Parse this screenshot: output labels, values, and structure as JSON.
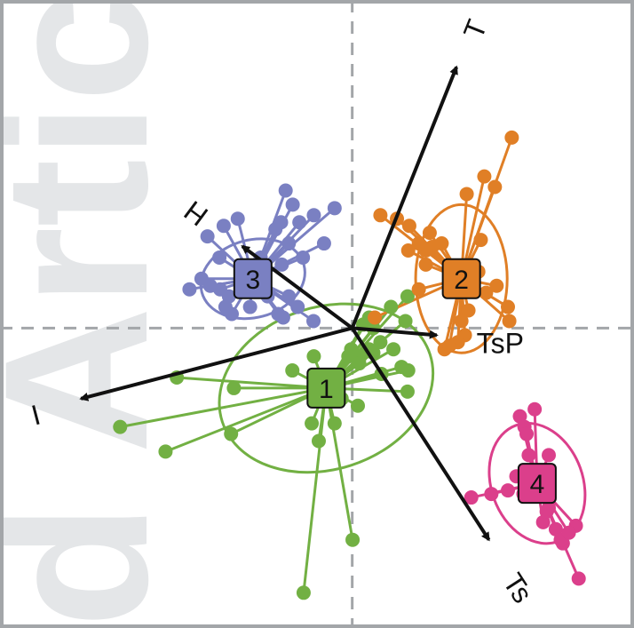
{
  "chart_data": {
    "type": "scatter",
    "title": "",
    "xlabel": "",
    "ylabel": "",
    "xlim": [
      -1.0,
      0.8
    ],
    "ylim": [
      -0.85,
      0.93
    ],
    "origin_lines": true,
    "watermark": "d Artic",
    "arrows": [
      {
        "label": "T",
        "x": 0.296,
        "y": 0.74,
        "label_x": 0.355,
        "label_y": 0.845
      },
      {
        "label": "H",
        "x": -0.312,
        "y": 0.232,
        "label_x": -0.44,
        "label_y": 0.33
      },
      {
        "label": "TsP",
        "x": 0.24,
        "y": -0.02,
        "label_x": 0.42,
        "label_y": -0.05
      },
      {
        "label": "I",
        "x": -0.77,
        "y": -0.2,
        "label_x": -0.9,
        "label_y": -0.24
      },
      {
        "label": "Ts",
        "x": 0.388,
        "y": -0.6,
        "label_x": 0.465,
        "label_y": -0.74
      }
    ],
    "groups": [
      {
        "label": "1",
        "color": "#72b043",
        "centroid": [
          -0.074,
          -0.17
        ],
        "ellipse": {
          "rx": 0.31,
          "ry": 0.23,
          "angle": -18
        },
        "points": [
          [
            -0.659,
            -0.28
          ],
          [
            -0.53,
            -0.35
          ],
          [
            -0.498,
            -0.14
          ],
          [
            -0.336,
            -0.17
          ],
          [
            -0.344,
            -0.3
          ],
          [
            -0.17,
            -0.12
          ],
          [
            -0.109,
            -0.08
          ],
          [
            -0.003,
            -0.06
          ],
          [
            -0.011,
            -0.08
          ],
          [
            0.023,
            -0.08
          ],
          [
            0.048,
            -0.06
          ],
          [
            0.06,
            -0.07
          ],
          [
            0.02,
            -0.1
          ],
          [
            0.083,
            -0.13
          ],
          [
            0.157,
            -0.18
          ],
          [
            0.159,
            -0.12
          ],
          [
            0.14,
            -0.11
          ],
          [
            0.117,
            -0.06
          ],
          [
            0.08,
            -0.04
          ],
          [
            0.031,
            0.01
          ],
          [
            0.048,
            0.03
          ],
          [
            0.11,
            0.06
          ],
          [
            0.157,
            0.09
          ],
          [
            0.151,
            0.02
          ],
          [
            0.016,
            -0.22
          ],
          [
            -0.095,
            -0.32
          ],
          [
            -0.115,
            -0.27
          ],
          [
            -0.05,
            -0.27
          ],
          [
            0.001,
            -0.6
          ],
          [
            -0.138,
            -0.75
          ],
          [
            -0.03,
            -0.2
          ],
          [
            0.06,
            0.0
          ]
        ]
      },
      {
        "label": "2",
        "color": "#e07f26",
        "centroid": [
          0.31,
          0.14
        ],
        "ellipse": {
          "rx": 0.13,
          "ry": 0.21,
          "angle": 0
        },
        "points": [
          [
            0.453,
            0.54
          ],
          [
            0.405,
            0.4
          ],
          [
            0.375,
            0.43
          ],
          [
            0.325,
            0.38
          ],
          [
            0.365,
            0.25
          ],
          [
            0.254,
            0.24
          ],
          [
            0.22,
            0.27
          ],
          [
            0.227,
            0.23
          ],
          [
            0.209,
            0.22
          ],
          [
            0.189,
            0.24
          ],
          [
            0.162,
            0.29
          ],
          [
            0.127,
            0.31
          ],
          [
            0.08,
            0.32
          ],
          [
            0.159,
            0.22
          ],
          [
            0.209,
            0.18
          ],
          [
            0.189,
            0.11
          ],
          [
            0.358,
            0.16
          ],
          [
            0.41,
            0.12
          ],
          [
            0.442,
            0.06
          ],
          [
            0.446,
            0.02
          ],
          [
            0.33,
            0.05
          ],
          [
            0.31,
            0.02
          ],
          [
            0.32,
            -0.02
          ],
          [
            0.3,
            -0.04
          ],
          [
            0.262,
            -0.06
          ],
          [
            0.276,
            -0.05
          ],
          [
            0.064,
            0.03
          ],
          [
            0.38,
            0.1
          ]
        ]
      },
      {
        "label": "3",
        "color": "#7a80c2",
        "centroid": [
          -0.282,
          0.14
        ],
        "ellipse": {
          "rx": 0.15,
          "ry": 0.11,
          "angle": -15
        },
        "points": [
          [
            -0.189,
            0.39
          ],
          [
            -0.169,
            0.35
          ],
          [
            -0.05,
            0.34
          ],
          [
            -0.109,
            0.32
          ],
          [
            -0.202,
            0.3
          ],
          [
            -0.218,
            0.28
          ],
          [
            -0.18,
            0.24
          ],
          [
            -0.15,
            0.3
          ],
          [
            -0.325,
            0.31
          ],
          [
            -0.365,
            0.29
          ],
          [
            -0.411,
            0.26
          ],
          [
            -0.377,
            0.2
          ],
          [
            -0.462,
            0.11
          ],
          [
            -0.428,
            0.14
          ],
          [
            -0.403,
            0.12
          ],
          [
            -0.375,
            0.11
          ],
          [
            -0.35,
            0.09
          ],
          [
            -0.29,
            0.06
          ],
          [
            -0.31,
            0.14
          ],
          [
            -0.36,
            0.06
          ],
          [
            -0.342,
            0.04
          ],
          [
            -0.3,
            0.13
          ],
          [
            -0.24,
            0.09
          ],
          [
            -0.21,
            0.04
          ],
          [
            -0.18,
            0.09
          ],
          [
            -0.196,
            0.03
          ],
          [
            -0.155,
            0.06
          ],
          [
            -0.08,
            0.24
          ],
          [
            -0.11,
            0.02
          ],
          [
            -0.26,
            0.2
          ],
          [
            -0.2,
            0.18
          ],
          [
            -0.14,
            0.2
          ]
        ]
      },
      {
        "label": "4",
        "color": "#db3f8b",
        "centroid": [
          0.525,
          -0.44
        ],
        "ellipse": {
          "rx": 0.13,
          "ry": 0.175,
          "angle": -20
        },
        "points": [
          [
            0.518,
            -0.23
          ],
          [
            0.476,
            -0.25
          ],
          [
            0.489,
            -0.28
          ],
          [
            0.495,
            -0.3
          ],
          [
            0.501,
            -0.36
          ],
          [
            0.558,
            -0.36
          ],
          [
            0.466,
            -0.42
          ],
          [
            0.442,
            -0.46
          ],
          [
            0.395,
            -0.47
          ],
          [
            0.338,
            -0.48
          ],
          [
            0.558,
            -0.51
          ],
          [
            0.542,
            -0.55
          ],
          [
            0.578,
            -0.57
          ],
          [
            0.598,
            -0.61
          ],
          [
            0.592,
            -0.6
          ],
          [
            0.635,
            -0.56
          ],
          [
            0.615,
            -0.58
          ],
          [
            0.643,
            -0.71
          ],
          [
            0.486,
            -0.47
          ],
          [
            0.552,
            -0.52
          ]
        ]
      }
    ]
  }
}
